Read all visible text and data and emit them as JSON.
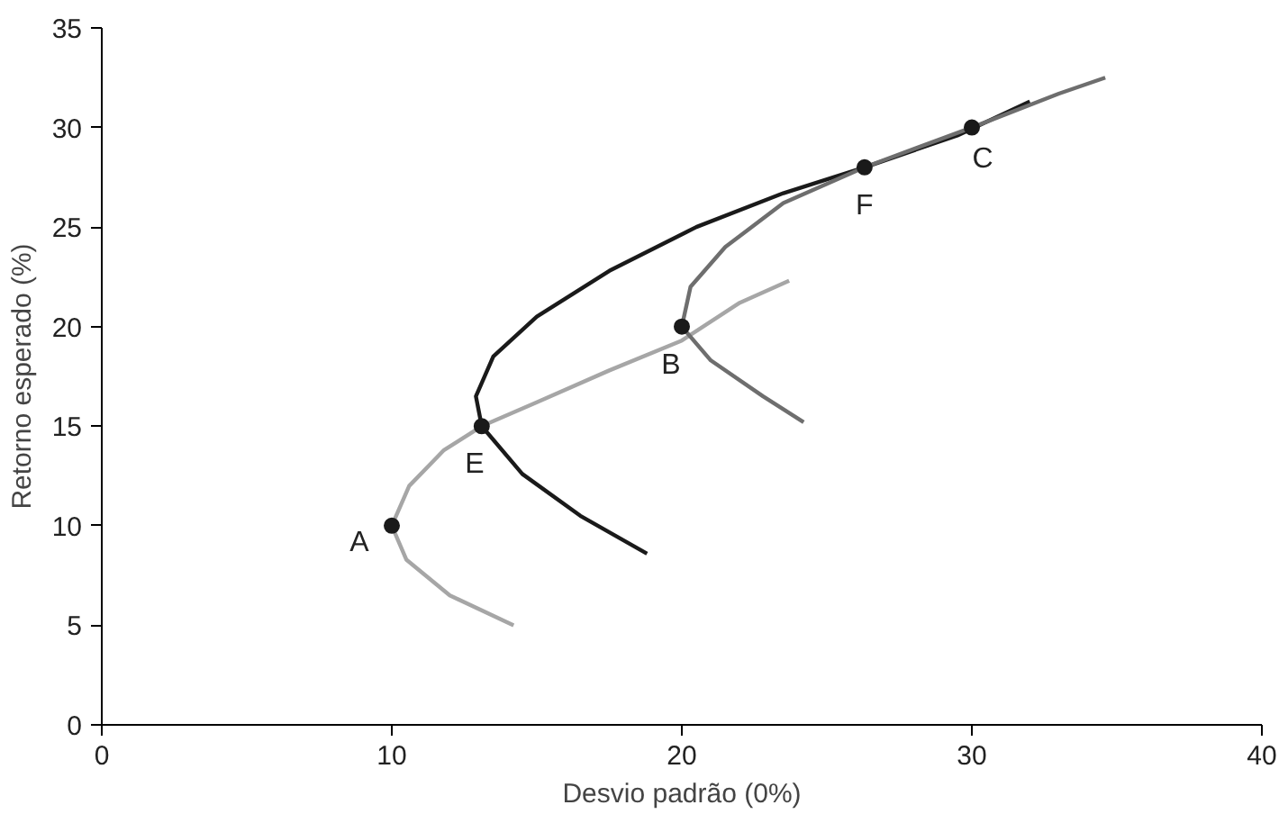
{
  "chart_data": {
    "type": "line",
    "xlabel": "Desvio padrão (0%)",
    "ylabel": "Retorno esperado (%)",
    "xlim": [
      0,
      40
    ],
    "ylim": [
      0,
      35
    ],
    "xticks": [
      0,
      10,
      20,
      30,
      40
    ],
    "yticks": [
      0,
      5,
      10,
      15,
      20,
      25,
      30,
      35
    ],
    "grid": false,
    "marker": "none",
    "line_style": "solid",
    "series": [
      {
        "color": "#a6a6a6",
        "x": [
          14.2,
          12.0,
          10.5,
          10.0,
          10.6,
          11.8,
          13.1,
          15.0,
          17.5,
          20.0,
          22.0,
          23.7
        ],
        "values": [
          5.0,
          6.5,
          8.3,
          10.0,
          12.0,
          13.8,
          15.0,
          16.2,
          17.8,
          19.3,
          21.2,
          22.3
        ]
      },
      {
        "color": "#1a1a1a",
        "x": [
          18.8,
          16.5,
          14.5,
          13.1,
          12.9,
          13.5,
          15.0,
          17.5,
          20.5,
          23.5,
          26.3,
          29.5,
          32.0
        ],
        "values": [
          8.6,
          10.5,
          12.6,
          15.0,
          16.5,
          18.5,
          20.5,
          22.8,
          25.0,
          26.7,
          28.0,
          29.6,
          31.3
        ]
      },
      {
        "color": "#6e6e6e",
        "x": [
          24.2,
          22.8,
          21.0,
          20.0,
          20.3,
          21.5,
          23.5,
          26.3,
          30.0,
          33.0,
          34.6
        ],
        "values": [
          15.2,
          16.5,
          18.3,
          20.0,
          22.0,
          24.0,
          26.2,
          28.0,
          30.0,
          31.7,
          32.5
        ]
      },
      {
        "type": "scatter",
        "color": "#1a1a1a",
        "marker": "circle",
        "x": [
          10,
          13.1,
          20,
          26.3,
          30
        ],
        "values": [
          10,
          15,
          20,
          28,
          30
        ]
      }
    ],
    "annotations": [
      {
        "text": "A",
        "x": 10,
        "y": 10
      },
      {
        "text": "E",
        "x": 13.1,
        "y": 15
      },
      {
        "text": "B",
        "x": 20,
        "y": 20
      },
      {
        "text": "F",
        "x": 26.3,
        "y": 28
      },
      {
        "text": "C",
        "x": 30,
        "y": 30
      }
    ]
  }
}
